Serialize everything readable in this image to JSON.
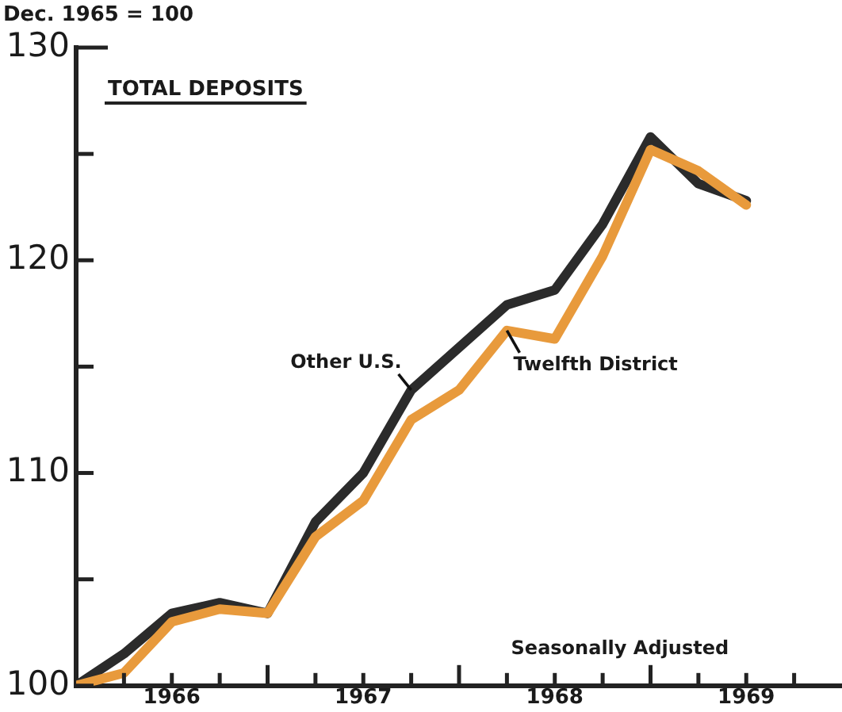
{
  "chart_data": {
    "type": "line",
    "title": "TOTAL DEPOSITS",
    "ylabel": "Dec. 1965 = 100",
    "annotations": [
      "Seasonally Adjusted"
    ],
    "x": [
      1966,
      1966.25,
      1966.5,
      1966.75,
      1967,
      1967.25,
      1967.5,
      1967.75,
      1968,
      1968.25,
      1968.5,
      1968.75,
      1969,
      1969.25,
      1969.5
    ],
    "series": [
      {
        "name": "Twelfth District",
        "color": "#e89a3c",
        "values": [
          100,
          100.6,
          103.0,
          103.6,
          103.4,
          107.0,
          108.7,
          112.5,
          113.9,
          116.7,
          116.3,
          120.2,
          125.2,
          124.2,
          122.6
        ]
      },
      {
        "name": "Other U.S.",
        "color": "#2b2b2b",
        "values": [
          100,
          101.5,
          103.4,
          103.9,
          103.4,
          107.7,
          110.0,
          113.9,
          115.9,
          117.9,
          118.6,
          121.7,
          125.8,
          123.6,
          122.8
        ]
      }
    ],
    "xlim": [
      1966,
      1970
    ],
    "xticks": [
      {
        "value": 1966.25,
        "label": null
      },
      {
        "value": 1966.5,
        "label": "1966"
      },
      {
        "value": 1966.75,
        "label": null
      },
      {
        "value": 1967,
        "label": null
      },
      {
        "value": 1967.25,
        "label": null
      },
      {
        "value": 1967.5,
        "label": "1967"
      },
      {
        "value": 1967.75,
        "label": null
      },
      {
        "value": 1968,
        "label": null
      },
      {
        "value": 1968.25,
        "label": null
      },
      {
        "value": 1968.5,
        "label": "1968"
      },
      {
        "value": 1968.75,
        "label": null
      },
      {
        "value": 1969,
        "label": null
      },
      {
        "value": 1969.25,
        "label": null
      },
      {
        "value": 1969.5,
        "label": "1969"
      },
      {
        "value": 1969.75,
        "label": null
      }
    ],
    "ylim": [
      100,
      130
    ],
    "yticks": [
      100,
      {
        "value": 105,
        "label": null
      },
      110,
      {
        "value": 115,
        "label": null
      },
      120,
      {
        "value": 125,
        "label": null
      },
      130
    ],
    "grid": false,
    "legend": false,
    "marker": "none",
    "line_style": "solid"
  }
}
